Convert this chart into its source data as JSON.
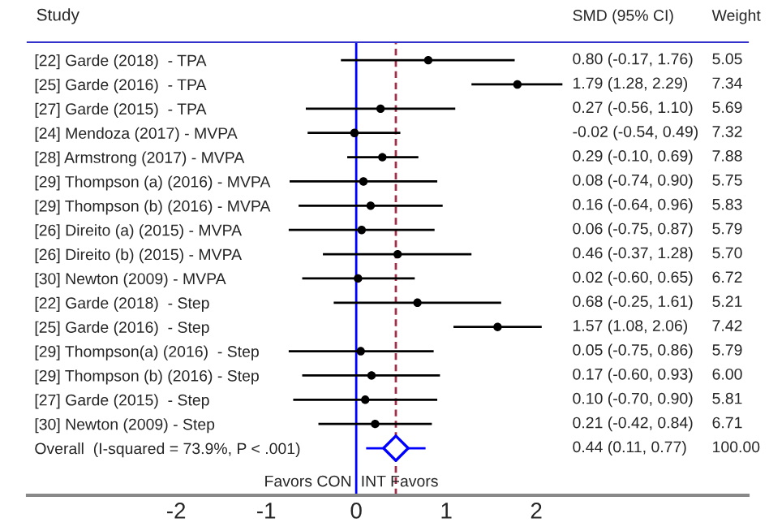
{
  "chart_data": {
    "type": "scatter",
    "orientation": "horizontal",
    "ylabel": "Study",
    "categories": [
      "[22] Garde (2018)  - TPA",
      "[25] Garde (2016)  - TPA",
      "[27] Garde (2015)  - TPA",
      "[24] Mendoza (2017) - MVPA",
      "[28] Armstrong (2017) - MVPA",
      "[29] Thompson (a) (2016) - MVPA",
      "[29] Thompson (b) (2016) - MVPA",
      "[26] Direito (a) (2015) - MVPA",
      "[26] Direito (b) (2015) - MVPA",
      "[30] Newton (2009) - MVPA",
      "[22] Garde (2018)  - Step",
      "[25] Garde (2016)  - Step",
      "[29] Thompson(a) (2016)  - Step",
      "[29] Thompson (b) (2016) - Step",
      "[27] Garde (2015)  - Step",
      "[30] Newton (2009) - Step",
      "Overall  (I-squared = 73.9%, P < .001)"
    ],
    "series": [
      {
        "color": "#000000",
        "marker": "circle",
        "values": [
          0.8,
          1.79,
          0.27,
          -0.02,
          0.29,
          0.08,
          0.16,
          0.06,
          0.46,
          0.02,
          0.68,
          1.57,
          0.05,
          0.17,
          0.1,
          0.21,
          null
        ],
        "errors": [
          [
            -0.17,
            1.76
          ],
          [
            1.28,
            2.29
          ],
          [
            -0.56,
            1.1
          ],
          [
            -0.54,
            0.49
          ],
          [
            -0.1,
            0.69
          ],
          [
            -0.74,
            0.9
          ],
          [
            -0.64,
            0.96
          ],
          [
            -0.75,
            0.87
          ],
          [
            -0.37,
            1.28
          ],
          [
            -0.6,
            0.65
          ],
          [
            -0.25,
            1.61
          ],
          [
            1.08,
            2.06
          ],
          [
            -0.75,
            0.86
          ],
          [
            -0.6,
            0.93
          ],
          [
            -0.7,
            0.9
          ],
          [
            -0.42,
            0.84
          ],
          null
        ]
      },
      {
        "color": "#0000ff",
        "marker": "diamond",
        "values": [
          null,
          null,
          null,
          null,
          null,
          null,
          null,
          null,
          null,
          null,
          null,
          null,
          null,
          null,
          null,
          null,
          0.44
        ],
        "errors": [
          null,
          null,
          null,
          null,
          null,
          null,
          null,
          null,
          null,
          null,
          null,
          null,
          null,
          null,
          null,
          null,
          [
            0.11,
            0.77
          ]
        ]
      }
    ],
    "xlim": [
      -3.65,
      4.35
    ],
    "xticks": [
      -2,
      -1,
      0,
      1,
      2
    ],
    "ref_lines": [
      {
        "axis": "x",
        "value": 0,
        "color": "#0000ff",
        "line_style": "solid"
      },
      {
        "axis": "x",
        "value": 0.44,
        "color": "#a0304a",
        "line_style": "dashed"
      }
    ],
    "annotations": [
      "SMD (95% CI)",
      "Weight",
      "Favors CON",
      "INT Favors",
      "0.80 (-0.17, 1.76)",
      "5.05",
      "1.79 (1.28, 2.29)",
      "7.34",
      "0.27 (-0.56, 1.10)",
      "5.69",
      "-0.02 (-0.54, 0.49)",
      "7.32",
      "0.29 (-0.10, 0.69)",
      "7.88",
      "0.08 (-0.74, 0.90)",
      "5.75",
      "0.16 (-0.64, 0.96)",
      "5.83",
      "0.06 (-0.75, 0.87)",
      "5.79",
      "0.46 (-0.37, 1.28)",
      "5.70",
      "0.02 (-0.60, 0.65)",
      "6.72",
      "0.68 (-0.25, 1.61)",
      "5.21",
      "1.57 (1.08, 2.06)",
      "7.42",
      "0.05 (-0.75, 0.86)",
      "5.79",
      "0.17 (-0.60, 0.93)",
      "6.00",
      "0.10 (-0.70, 0.90)",
      "5.81",
      "0.21 (-0.42, 0.84)",
      "6.71",
      "0.44 (0.11, 0.77)",
      "100.00"
    ],
    "legend": false,
    "grid": false
  }
}
